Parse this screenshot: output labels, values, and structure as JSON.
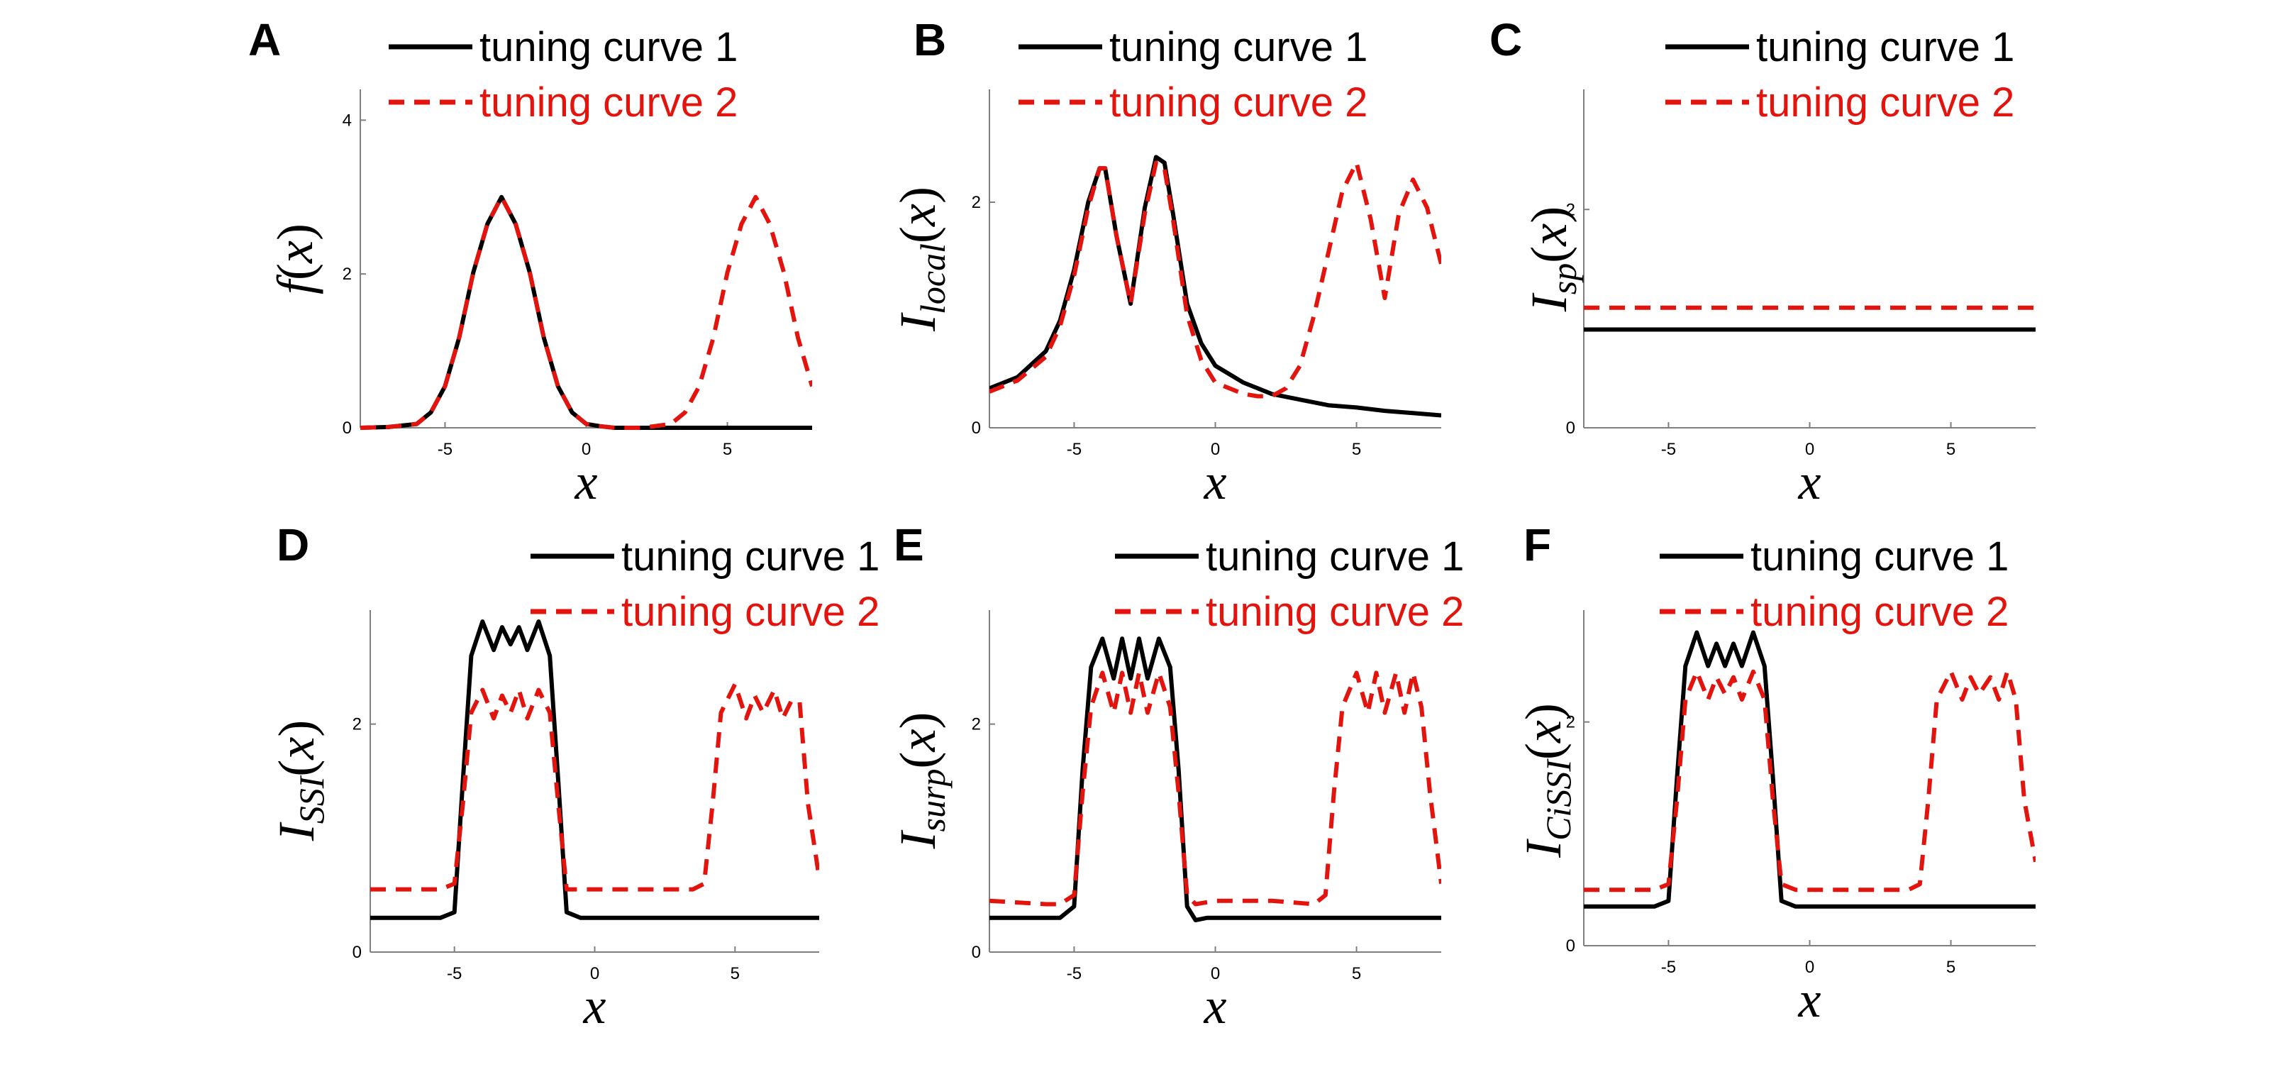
{
  "legend": {
    "series1_label": "tuning curve 1",
    "series2_label": "tuning curve 2"
  },
  "colors": {
    "series1": "#000000",
    "series2": "#e2140d"
  },
  "chart_data": [
    {
      "panel": "A",
      "type": "line",
      "ylabel": {
        "main": "f",
        "sub": "",
        "arg": "(x)"
      },
      "xlabel": "x",
      "xlim": [
        -8,
        8
      ],
      "ylim": [
        0,
        4.4
      ],
      "xticks": [
        -5,
        0,
        5
      ],
      "yticks": [
        0,
        2,
        4
      ],
      "series": [
        {
          "name": "tuning curve 1",
          "style": "solid",
          "x": [
            -8,
            -7,
            -6,
            -5.5,
            -5,
            -4.5,
            -4,
            -3.5,
            -3,
            -2.5,
            -2,
            -1.5,
            -1,
            -0.5,
            0,
            0.5,
            1,
            2,
            4,
            6,
            8
          ],
          "y": [
            0,
            0.01,
            0.05,
            0.2,
            0.54,
            1.17,
            2.02,
            2.65,
            3,
            2.65,
            2.02,
            1.17,
            0.54,
            0.2,
            0.05,
            0.02,
            0,
            0,
            0,
            0,
            0
          ]
        },
        {
          "name": "tuning curve 2",
          "style": "dashed",
          "x": [
            -8,
            -7,
            -6,
            -5.5,
            -5,
            -4.5,
            -4,
            -3.5,
            -3,
            -2.5,
            -2,
            -1.5,
            -1,
            -0.5,
            0,
            0.5,
            1,
            2,
            3,
            3.5,
            4,
            4.5,
            5,
            5.5,
            6,
            6.5,
            7,
            7.5,
            8
          ],
          "y": [
            0,
            0.01,
            0.05,
            0.2,
            0.54,
            1.17,
            2.02,
            2.65,
            3,
            2.65,
            2.02,
            1.17,
            0.54,
            0.2,
            0.05,
            0.02,
            0,
            0,
            0.05,
            0.2,
            0.54,
            1.17,
            2.02,
            2.65,
            3,
            2.65,
            2.02,
            1.17,
            0.54
          ]
        }
      ]
    },
    {
      "panel": "B",
      "type": "line",
      "ylabel": {
        "main": "I",
        "sub": "local",
        "arg": "(x)"
      },
      "xlabel": "x",
      "xlim": [
        -8,
        8
      ],
      "ylim": [
        0,
        3
      ],
      "xticks": [
        -5,
        0,
        5
      ],
      "yticks": [
        0,
        2
      ],
      "series": [
        {
          "name": "tuning curve 1",
          "style": "solid",
          "x": [
            -8,
            -7,
            -6,
            -5.5,
            -5,
            -4.5,
            -4.1,
            -3.9,
            -3.5,
            -3,
            -2.5,
            -2.1,
            -1.8,
            -1.5,
            -1,
            -0.5,
            0,
            1,
            2,
            3,
            4,
            5,
            6,
            7,
            8
          ],
          "y": [
            0.35,
            0.45,
            0.68,
            0.95,
            1.4,
            2,
            2.3,
            2.3,
            1.7,
            1.1,
            1.95,
            2.4,
            2.35,
            1.9,
            1.1,
            0.75,
            0.55,
            0.4,
            0.3,
            0.25,
            0.2,
            0.18,
            0.15,
            0.13,
            0.11
          ]
        },
        {
          "name": "tuning curve 2",
          "style": "dashed",
          "x": [
            -8,
            -7,
            -6,
            -5.5,
            -5,
            -4.5,
            -4.1,
            -3.9,
            -3.5,
            -3,
            -2.5,
            -2.1,
            -1.8,
            -1.5,
            -1,
            -0.5,
            0,
            1,
            1.5,
            2,
            2.5,
            3,
            3.5,
            4,
            4.5,
            5,
            5.5,
            6,
            6.5,
            7,
            7.5,
            8
          ],
          "y": [
            0.32,
            0.42,
            0.63,
            0.9,
            1.35,
            1.95,
            2.3,
            2.3,
            1.7,
            1.1,
            1.9,
            2.35,
            2.3,
            1.85,
            1,
            0.6,
            0.4,
            0.3,
            0.28,
            0.28,
            0.35,
            0.55,
            1,
            1.55,
            2.1,
            2.35,
            1.85,
            1.15,
            1.9,
            2.2,
            1.95,
            1.45
          ]
        }
      ]
    },
    {
      "panel": "C",
      "type": "line",
      "ylabel": {
        "main": "I",
        "sub": "sp",
        "arg": "(x)"
      },
      "xlabel": "x",
      "xlim": [
        -8,
        8
      ],
      "ylim": [
        0,
        3.1
      ],
      "xticks": [
        -5,
        0,
        5
      ],
      "yticks": [
        0,
        2
      ],
      "series": [
        {
          "name": "tuning curve 1",
          "style": "solid",
          "x": [
            -8,
            8
          ],
          "y": [
            0.9,
            0.9
          ]
        },
        {
          "name": "tuning curve 2",
          "style": "dashed",
          "x": [
            -8,
            8
          ],
          "y": [
            1.1,
            1.1
          ]
        }
      ]
    },
    {
      "panel": "D",
      "type": "line",
      "ylabel": {
        "main": "I",
        "sub": "SSI",
        "arg": "(x)"
      },
      "xlabel": "x",
      "xlim": [
        -8,
        8
      ],
      "ylim": [
        0,
        3
      ],
      "xticks": [
        -5,
        0,
        5
      ],
      "yticks": [
        0,
        2
      ],
      "series": [
        {
          "name": "tuning curve 1",
          "style": "solid",
          "x": [
            -8,
            -5.5,
            -5,
            -4.7,
            -4.4,
            -4,
            -3.6,
            -3.3,
            -3,
            -2.7,
            -2.4,
            -2,
            -1.6,
            -1.3,
            -1,
            -0.5,
            0,
            8
          ],
          "y": [
            0.3,
            0.3,
            0.35,
            1.5,
            2.6,
            2.9,
            2.65,
            2.85,
            2.7,
            2.85,
            2.65,
            2.9,
            2.6,
            1.5,
            0.35,
            0.3,
            0.3,
            0.3
          ]
        },
        {
          "name": "tuning curve 2",
          "style": "dashed",
          "x": [
            -8,
            -5.5,
            -5,
            -4.7,
            -4.4,
            -4,
            -3.6,
            -3.3,
            -3,
            -2.7,
            -2.4,
            -2,
            -1.6,
            -1.3,
            -1,
            -0.5,
            0,
            3.5,
            3.9,
            4.2,
            4.5,
            5,
            5.4,
            5.7,
            6,
            6.4,
            6.7,
            7,
            7.3,
            7.6,
            8
          ],
          "y": [
            0.55,
            0.55,
            0.6,
            1.3,
            2.1,
            2.3,
            2.05,
            2.25,
            2.1,
            2.3,
            2.05,
            2.3,
            2.1,
            1.3,
            0.55,
            0.55,
            0.55,
            0.55,
            0.6,
            1.3,
            2.1,
            2.35,
            2.05,
            2.25,
            2.1,
            2.3,
            2.05,
            2.2,
            2.2,
            1.3,
            0.65
          ]
        }
      ]
    },
    {
      "panel": "E",
      "type": "line",
      "ylabel": {
        "main": "I",
        "sub": "surp",
        "arg": "(x)"
      },
      "xlabel": "x",
      "xlim": [
        -8,
        8
      ],
      "ylim": [
        0,
        3
      ],
      "xticks": [
        -5,
        0,
        5
      ],
      "yticks": [
        0,
        2
      ],
      "series": [
        {
          "name": "tuning curve 1",
          "style": "solid",
          "x": [
            -8,
            -6,
            -5.5,
            -5,
            -4.7,
            -4.4,
            -4,
            -3.6,
            -3.3,
            -3,
            -2.7,
            -2.4,
            -2,
            -1.6,
            -1.3,
            -1,
            -0.7,
            -0.3,
            0,
            8
          ],
          "y": [
            0.3,
            0.3,
            0.3,
            0.4,
            1.6,
            2.5,
            2.75,
            2.4,
            2.75,
            2.4,
            2.75,
            2.4,
            2.75,
            2.5,
            1.6,
            0.4,
            0.28,
            0.3,
            0.3,
            0.3
          ]
        },
        {
          "name": "tuning curve 2",
          "style": "dashed",
          "x": [
            -8,
            -6,
            -5.5,
            -5,
            -4.7,
            -4.4,
            -4,
            -3.6,
            -3.3,
            -3,
            -2.7,
            -2.4,
            -2,
            -1.6,
            -1.3,
            -1,
            -0.7,
            0,
            2,
            3.5,
            3.9,
            4.2,
            4.5,
            5,
            5.4,
            5.7,
            6,
            6.4,
            6.7,
            7,
            7.3,
            7.6,
            8
          ],
          "y": [
            0.45,
            0.42,
            0.42,
            0.5,
            1.4,
            2.15,
            2.45,
            2.1,
            2.45,
            2.1,
            2.45,
            2.1,
            2.45,
            2.15,
            1.4,
            0.5,
            0.42,
            0.45,
            0.45,
            0.42,
            0.5,
            1.4,
            2.15,
            2.45,
            2.1,
            2.45,
            2.1,
            2.45,
            2.1,
            2.45,
            2.15,
            1.4,
            0.6
          ]
        }
      ]
    },
    {
      "panel": "F",
      "type": "line",
      "ylabel": {
        "main": "I",
        "sub": "CiSSI",
        "arg": "(x)"
      },
      "xlabel": "x",
      "xlim": [
        -8,
        8
      ],
      "ylim": [
        0,
        3
      ],
      "xticks": [
        -5,
        0,
        5
      ],
      "yticks": [
        0,
        2
      ],
      "series": [
        {
          "name": "tuning curve 1",
          "style": "solid",
          "x": [
            -8,
            -5.5,
            -5,
            -4.7,
            -4.4,
            -4,
            -3.6,
            -3.3,
            -3,
            -2.7,
            -2.4,
            -2,
            -1.6,
            -1.3,
            -1,
            -0.5,
            0,
            8
          ],
          "y": [
            0.35,
            0.35,
            0.4,
            1.5,
            2.5,
            2.8,
            2.5,
            2.7,
            2.5,
            2.7,
            2.5,
            2.8,
            2.5,
            1.5,
            0.4,
            0.35,
            0.35,
            0.35
          ]
        },
        {
          "name": "tuning curve 2",
          "style": "dashed",
          "x": [
            -8,
            -5.5,
            -5,
            -4.7,
            -4.4,
            -4,
            -3.6,
            -3.3,
            -3,
            -2.7,
            -2.4,
            -2,
            -1.6,
            -1.3,
            -1,
            -0.5,
            0,
            3.5,
            3.9,
            4.2,
            4.5,
            5,
            5.4,
            5.7,
            6,
            6.4,
            6.7,
            7,
            7.3,
            7.6,
            8
          ],
          "y": [
            0.5,
            0.5,
            0.55,
            1.3,
            2.2,
            2.45,
            2.2,
            2.4,
            2.25,
            2.4,
            2.2,
            2.45,
            2.2,
            1.3,
            0.55,
            0.5,
            0.5,
            0.5,
            0.55,
            1.3,
            2.2,
            2.45,
            2.2,
            2.4,
            2.25,
            2.4,
            2.2,
            2.45,
            2.2,
            1.3,
            0.75
          ]
        }
      ]
    }
  ]
}
